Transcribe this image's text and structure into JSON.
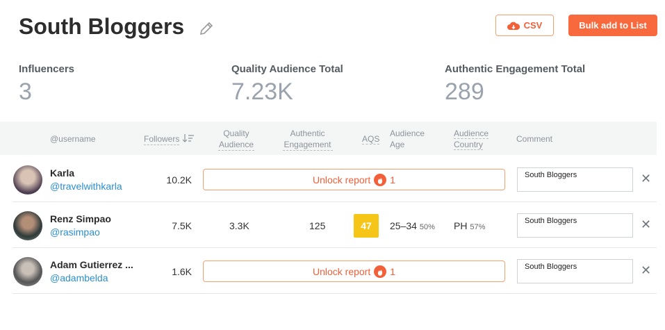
{
  "header": {
    "title": "South Bloggers",
    "csv_button": "CSV",
    "bulk_button": "Bulk add to List"
  },
  "stats": [
    {
      "label": "Influencers",
      "value": "3"
    },
    {
      "label": "Quality Audience Total",
      "value": "7.23K"
    },
    {
      "label": "Authentic Engagement Total",
      "value": "289"
    }
  ],
  "table": {
    "columns": [
      "@username",
      "Followers",
      "Quality Audience",
      "Authentic Engagement",
      "AQS",
      "Audience Age",
      "Audience Country",
      "Comment"
    ],
    "rows": [
      {
        "name": "Karla",
        "handle": "@travelwithkarla",
        "followers": "10.2K",
        "unlock": "Unlock report",
        "unlock_cost": "1",
        "comment": "South Bloggers"
      },
      {
        "name": "Renz Simpao",
        "handle": "@rasimpao",
        "followers": "7.5K",
        "quality_audience": "3.3K",
        "authentic_engagement": "125",
        "aqs": "47",
        "age": "25–34",
        "age_share": "50%",
        "country": "PH",
        "country_share": "57%",
        "comment": "South Bloggers"
      },
      {
        "name": "Adam Gutierrez ...",
        "handle": "@adambelda",
        "followers": "1.6K",
        "unlock": "Unlock report",
        "unlock_cost": "1",
        "comment": "South Bloggers"
      }
    ]
  }
}
